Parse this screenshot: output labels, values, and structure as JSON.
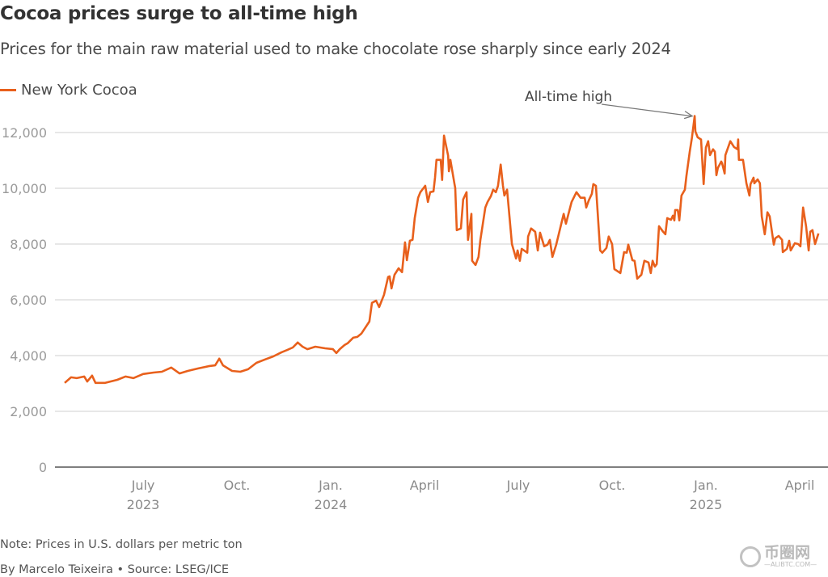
{
  "header": {
    "title": "Cocoa prices surge to all-time high",
    "subtitle": "Prices for the main raw material used to make chocolate rose sharply since early 2024"
  },
  "footer": {
    "note": "Note: Prices in U.S. dollars per metric ton",
    "byline": "By Marcelo Teixeira • Source: LSEG/ICE"
  },
  "watermark": {
    "cn": "币圈网",
    "en": "—ALIBTC.COM—"
  },
  "chart_data": {
    "type": "line",
    "title": "Cocoa prices surge to all-time high",
    "xlabel": "",
    "ylabel": "",
    "ylim": [
      0,
      12000
    ],
    "xlim": [
      2023.29,
      2025.3
    ],
    "grid": true,
    "legend_position": "top-left",
    "annotation": {
      "text": "All-time high",
      "t": 2024.97,
      "value": 12590
    },
    "yticks": [
      {
        "value": 0,
        "label": "0"
      },
      {
        "value": 2000,
        "label": "2,000"
      },
      {
        "value": 4000,
        "label": "4,000"
      },
      {
        "value": 6000,
        "label": "6,000"
      },
      {
        "value": 8000,
        "label": "8,000"
      },
      {
        "value": 10000,
        "label": "10,000"
      },
      {
        "value": 12000,
        "label": "12,000"
      }
    ],
    "xticks": [
      {
        "t": 2023.5,
        "label": "July",
        "year": "2023"
      },
      {
        "t": 2023.75,
        "label": "Oct.",
        "year": ""
      },
      {
        "t": 2024.0,
        "label": "Jan.",
        "year": "2024"
      },
      {
        "t": 2024.25,
        "label": "April",
        "year": ""
      },
      {
        "t": 2024.5,
        "label": "July",
        "year": ""
      },
      {
        "t": 2024.75,
        "label": "Oct.",
        "year": ""
      },
      {
        "t": 2025.0,
        "label": "Jan.",
        "year": "2025"
      },
      {
        "t": 2025.25,
        "label": "April",
        "year": ""
      }
    ],
    "series": [
      {
        "name": "New York Cocoa",
        "color": "#e8601c",
        "points": [
          [
            2023.291,
            3020
          ],
          [
            2023.308,
            3220
          ],
          [
            2023.323,
            3190
          ],
          [
            2023.343,
            3250
          ],
          [
            2023.351,
            3070
          ],
          [
            2023.364,
            3280
          ],
          [
            2023.373,
            3020
          ],
          [
            2023.399,
            3020
          ],
          [
            2023.431,
            3130
          ],
          [
            2023.453,
            3250
          ],
          [
            2023.474,
            3190
          ],
          [
            2023.5,
            3340
          ],
          [
            2023.528,
            3390
          ],
          [
            2023.55,
            3420
          ],
          [
            2023.575,
            3570
          ],
          [
            2023.597,
            3360
          ],
          [
            2023.619,
            3450
          ],
          [
            2023.647,
            3540
          ],
          [
            2023.675,
            3620
          ],
          [
            2023.692,
            3650
          ],
          [
            2023.703,
            3890
          ],
          [
            2023.713,
            3650
          ],
          [
            2023.737,
            3450
          ],
          [
            2023.759,
            3420
          ],
          [
            2023.78,
            3510
          ],
          [
            2023.802,
            3740
          ],
          [
            2023.825,
            3860
          ],
          [
            2023.847,
            3970
          ],
          [
            2023.869,
            4120
          ],
          [
            2023.884,
            4200
          ],
          [
            2023.899,
            4290
          ],
          [
            2023.912,
            4470
          ],
          [
            2023.925,
            4320
          ],
          [
            2023.938,
            4230
          ],
          [
            2023.959,
            4320
          ],
          [
            2023.985,
            4260
          ],
          [
            2024.006,
            4230
          ],
          [
            2024.015,
            4090
          ],
          [
            2024.024,
            4230
          ],
          [
            2024.037,
            4380
          ],
          [
            2024.045,
            4440
          ],
          [
            2024.06,
            4640
          ],
          [
            2024.071,
            4670
          ],
          [
            2024.082,
            4790
          ],
          [
            2024.103,
            5220
          ],
          [
            2024.11,
            5890
          ],
          [
            2024.121,
            5970
          ],
          [
            2024.129,
            5740
          ],
          [
            2024.142,
            6180
          ],
          [
            2024.153,
            6820
          ],
          [
            2024.157,
            6840
          ],
          [
            2024.162,
            6410
          ],
          [
            2024.17,
            6900
          ],
          [
            2024.181,
            7130
          ],
          [
            2024.19,
            6990
          ],
          [
            2024.198,
            8060
          ],
          [
            2024.203,
            7420
          ],
          [
            2024.211,
            8120
          ],
          [
            2024.218,
            8150
          ],
          [
            2024.224,
            8930
          ],
          [
            2024.233,
            9660
          ],
          [
            2024.239,
            9860
          ],
          [
            2024.252,
            10090
          ],
          [
            2024.259,
            9510
          ],
          [
            2024.265,
            9860
          ],
          [
            2024.274,
            9890
          ],
          [
            2024.278,
            10380
          ],
          [
            2024.282,
            11020
          ],
          [
            2024.293,
            11020
          ],
          [
            2024.297,
            10300
          ],
          [
            2024.302,
            11890
          ],
          [
            2024.313,
            11170
          ],
          [
            2024.315,
            10610
          ],
          [
            2024.319,
            11020
          ],
          [
            2024.33,
            10150
          ],
          [
            2024.332,
            10010
          ],
          [
            2024.336,
            8500
          ],
          [
            2024.347,
            8560
          ],
          [
            2024.353,
            9600
          ],
          [
            2024.362,
            9860
          ],
          [
            2024.366,
            8150
          ],
          [
            2024.375,
            9080
          ],
          [
            2024.377,
            7400
          ],
          [
            2024.386,
            7250
          ],
          [
            2024.394,
            7540
          ],
          [
            2024.399,
            8150
          ],
          [
            2024.412,
            9310
          ],
          [
            2024.418,
            9510
          ],
          [
            2024.427,
            9720
          ],
          [
            2024.433,
            9950
          ],
          [
            2024.44,
            9860
          ],
          [
            2024.446,
            10090
          ],
          [
            2024.453,
            10850
          ],
          [
            2024.459,
            10090
          ],
          [
            2024.463,
            9740
          ],
          [
            2024.47,
            9950
          ],
          [
            2024.483,
            8000
          ],
          [
            2024.494,
            7480
          ],
          [
            2024.498,
            7770
          ],
          [
            2024.504,
            7400
          ],
          [
            2024.509,
            7830
          ],
          [
            2024.524,
            7690
          ],
          [
            2024.526,
            8270
          ],
          [
            2024.534,
            8560
          ],
          [
            2024.545,
            8440
          ],
          [
            2024.552,
            7770
          ],
          [
            2024.558,
            8410
          ],
          [
            2024.569,
            7920
          ],
          [
            2024.578,
            7980
          ],
          [
            2024.584,
            8150
          ],
          [
            2024.591,
            7540
          ],
          [
            2024.601,
            7980
          ],
          [
            2024.621,
            9080
          ],
          [
            2024.627,
            8730
          ],
          [
            2024.642,
            9510
          ],
          [
            2024.655,
            9860
          ],
          [
            2024.666,
            9660
          ],
          [
            2024.677,
            9660
          ],
          [
            2024.681,
            9310
          ],
          [
            2024.688,
            9570
          ],
          [
            2024.696,
            9800
          ],
          [
            2024.7,
            10150
          ],
          [
            2024.707,
            10090
          ],
          [
            2024.718,
            7770
          ],
          [
            2024.724,
            7690
          ],
          [
            2024.735,
            7860
          ],
          [
            2024.741,
            8270
          ],
          [
            2024.75,
            8000
          ],
          [
            2024.756,
            7100
          ],
          [
            2024.772,
            6960
          ],
          [
            2024.782,
            7710
          ],
          [
            2024.789,
            7690
          ],
          [
            2024.793,
            7980
          ],
          [
            2024.804,
            7420
          ],
          [
            2024.81,
            7400
          ],
          [
            2024.817,
            6760
          ],
          [
            2024.828,
            6900
          ],
          [
            2024.836,
            7400
          ],
          [
            2024.847,
            7340
          ],
          [
            2024.853,
            6960
          ],
          [
            2024.858,
            7400
          ],
          [
            2024.864,
            7190
          ],
          [
            2024.869,
            7280
          ],
          [
            2024.875,
            8640
          ],
          [
            2024.886,
            8440
          ],
          [
            2024.892,
            8350
          ],
          [
            2024.897,
            8930
          ],
          [
            2024.907,
            8870
          ],
          [
            2024.912,
            9020
          ],
          [
            2024.916,
            8850
          ],
          [
            2024.918,
            9220
          ],
          [
            2024.925,
            9220
          ],
          [
            2024.929,
            8850
          ],
          [
            2024.935,
            9740
          ],
          [
            2024.944,
            9950
          ],
          [
            2024.948,
            10440
          ],
          [
            2024.957,
            11310
          ],
          [
            2024.963,
            11830
          ],
          [
            2024.97,
            12590
          ],
          [
            2024.972,
            12040
          ],
          [
            2024.978,
            11830
          ],
          [
            2024.987,
            11750
          ],
          [
            2024.994,
            10150
          ],
          [
            2025.0,
            11460
          ],
          [
            2025.006,
            11690
          ],
          [
            2025.011,
            11190
          ],
          [
            2025.019,
            11400
          ],
          [
            2025.024,
            11310
          ],
          [
            2025.028,
            10470
          ],
          [
            2025.032,
            10730
          ],
          [
            2025.041,
            10960
          ],
          [
            2025.043,
            10900
          ],
          [
            2025.05,
            10530
          ],
          [
            2025.052,
            11190
          ],
          [
            2025.065,
            11690
          ],
          [
            2025.075,
            11480
          ],
          [
            2025.084,
            11400
          ],
          [
            2025.086,
            11750
          ],
          [
            2025.088,
            11020
          ],
          [
            2025.099,
            11020
          ],
          [
            2025.108,
            10180
          ],
          [
            2025.116,
            9740
          ],
          [
            2025.119,
            10150
          ],
          [
            2025.127,
            10380
          ],
          [
            2025.129,
            10180
          ],
          [
            2025.138,
            10320
          ],
          [
            2025.144,
            10180
          ],
          [
            2025.149,
            8990
          ],
          [
            2025.157,
            8350
          ],
          [
            2025.164,
            9140
          ],
          [
            2025.17,
            8990
          ],
          [
            2025.181,
            7980
          ],
          [
            2025.185,
            8210
          ],
          [
            2025.194,
            8290
          ],
          [
            2025.203,
            8150
          ],
          [
            2025.205,
            7710
          ],
          [
            2025.216,
            7830
          ],
          [
            2025.222,
            8120
          ],
          [
            2025.226,
            7770
          ],
          [
            2025.237,
            8030
          ],
          [
            2025.246,
            8000
          ],
          [
            2025.252,
            7920
          ],
          [
            2025.259,
            9310
          ],
          [
            2025.267,
            8640
          ],
          [
            2025.274,
            7770
          ],
          [
            2025.278,
            8440
          ],
          [
            2025.284,
            8500
          ],
          [
            2025.291,
            8000
          ],
          [
            2025.3,
            8380
          ]
        ]
      }
    ]
  }
}
